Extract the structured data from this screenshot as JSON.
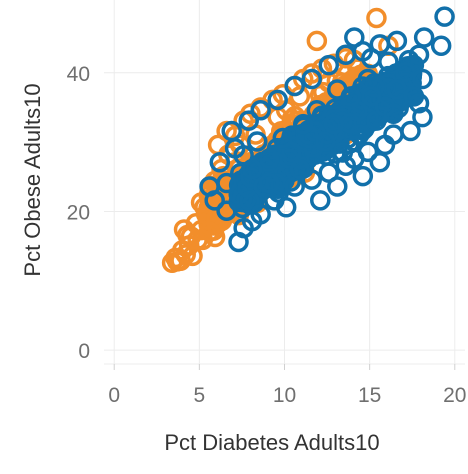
{
  "chart_data": {
    "type": "scatter",
    "title": "",
    "xlabel": "Pct Diabetes Adults10",
    "ylabel": "Pct Obese Adults10",
    "xlim": [
      -0.6,
      20.6
    ],
    "ylim": [
      -2,
      50.5
    ],
    "xticks": [
      0,
      5,
      10,
      15,
      20
    ],
    "yticks": [
      0,
      20,
      40
    ],
    "grid": true,
    "legend": "none",
    "marker": "hollow-circle",
    "series": [
      {
        "color": "#f28e2b",
        "draw_order": 1,
        "points": [
          [
            3.4,
            12.6
          ],
          [
            3.7,
            12.8
          ],
          [
            3.9,
            12.9
          ],
          [
            3.6,
            13.3
          ],
          [
            4.2,
            13.8
          ],
          [
            4.0,
            14.4
          ],
          [
            4.6,
            13.6
          ],
          [
            4.4,
            15.1
          ],
          [
            4.9,
            15.9
          ],
          [
            4.5,
            16.4
          ],
          [
            4.1,
            17.4
          ],
          [
            5.1,
            17.3
          ],
          [
            4.8,
            18.3
          ],
          [
            5.4,
            19.6
          ],
          [
            5.1,
            21.3
          ],
          [
            5.6,
            22.7
          ],
          [
            5.3,
            20.6
          ],
          [
            5.9,
            24.4
          ],
          [
            6.3,
            26.1
          ],
          [
            6.7,
            28.2
          ],
          [
            6.1,
            29.6
          ],
          [
            7.1,
            30.9
          ],
          [
            7.6,
            33.1
          ],
          [
            8.0,
            34.1
          ],
          [
            8.6,
            35.0
          ],
          [
            9.3,
            36.1
          ],
          [
            9.9,
            36.9
          ],
          [
            10.6,
            38.1
          ],
          [
            11.1,
            39.1
          ],
          [
            11.6,
            39.9
          ],
          [
            12.2,
            40.6
          ],
          [
            12.9,
            41.3
          ],
          [
            13.6,
            42.1
          ],
          [
            11.9,
            44.6
          ],
          [
            15.4,
            47.9
          ],
          [
            16.1,
            43.9
          ],
          [
            6.6,
            31.6
          ],
          [
            7.4,
            29.6
          ],
          [
            8.3,
            31.1
          ],
          [
            9.6,
            33.6
          ],
          [
            10.1,
            34.6
          ],
          [
            10.9,
            36.6
          ],
          [
            12.6,
            38.6
          ],
          [
            14.3,
            40.6
          ],
          [
            5.7,
            23.1
          ],
          [
            6.4,
            25.1
          ],
          [
            7.1,
            27.1
          ],
          [
            6.0,
            19.1
          ],
          [
            6.9,
            21.1
          ],
          [
            7.6,
            23.6
          ],
          [
            8.6,
            25.1
          ],
          [
            9.6,
            26.6
          ],
          [
            10.6,
            27.6
          ],
          [
            11.6,
            28.1
          ],
          [
            12.6,
            29.6
          ],
          [
            13.6,
            31.1
          ],
          [
            14.6,
            33.1
          ],
          [
            15.4,
            34.6
          ],
          [
            5.2,
            15.9
          ],
          [
            5.6,
            17.1
          ],
          [
            4.3,
            16.6
          ],
          [
            9.0,
            23.4
          ],
          [
            8.2,
            21.8
          ],
          [
            7.9,
            22.9
          ],
          [
            10.3,
            24.8
          ],
          [
            11.2,
            25.6
          ]
        ]
      },
      {
        "color": "#1170aa",
        "draw_order": 2,
        "points": [
          [
            19.4,
            48.1
          ],
          [
            19.2,
            43.9
          ],
          [
            17.6,
            41.1
          ],
          [
            18.2,
            45.1
          ],
          [
            17.9,
            42.6
          ],
          [
            17.1,
            38.6
          ],
          [
            16.9,
            36.1
          ],
          [
            18.1,
            33.6
          ],
          [
            17.4,
            31.6
          ],
          [
            16.4,
            31.1
          ],
          [
            15.9,
            29.6
          ],
          [
            15.4,
            33.1
          ],
          [
            14.9,
            28.6
          ],
          [
            14.1,
            27.6
          ],
          [
            13.6,
            26.6
          ],
          [
            12.6,
            25.6
          ],
          [
            11.6,
            24.6
          ],
          [
            10.6,
            23.6
          ],
          [
            10.1,
            20.6
          ],
          [
            9.4,
            21.6
          ],
          [
            8.6,
            19.6
          ],
          [
            8.1,
            18.6
          ],
          [
            7.6,
            17.6
          ],
          [
            7.3,
            15.6
          ],
          [
            6.6,
            20.1
          ],
          [
            5.9,
            21.6
          ],
          [
            5.6,
            23.6
          ],
          [
            6.2,
            27.1
          ],
          [
            7.1,
            29.1
          ],
          [
            6.9,
            31.6
          ],
          [
            7.9,
            33.1
          ],
          [
            8.6,
            34.6
          ],
          [
            9.6,
            36.1
          ],
          [
            10.6,
            38.1
          ],
          [
            11.6,
            39.1
          ],
          [
            12.6,
            41.1
          ],
          [
            13.6,
            42.6
          ],
          [
            14.6,
            43.1
          ],
          [
            15.6,
            44.1
          ],
          [
            16.6,
            44.6
          ],
          [
            14.1,
            45.1
          ],
          [
            15.1,
            42.1
          ],
          [
            16.1,
            41.6
          ],
          [
            17.1,
            40.1
          ],
          [
            16.6,
            37.6
          ],
          [
            17.6,
            36.6
          ],
          [
            18.1,
            39.1
          ],
          [
            15.9,
            35.1
          ],
          [
            12.1,
            21.6
          ],
          [
            13.1,
            23.6
          ],
          [
            14.6,
            25.1
          ],
          [
            15.6,
            27.1
          ],
          [
            9.1,
            24.1
          ],
          [
            8.1,
            26.1
          ],
          [
            7.6,
            28.1
          ],
          [
            6.6,
            24.1
          ],
          [
            16.4,
            34.1
          ],
          [
            17.9,
            35.6
          ],
          [
            14.4,
            31.1
          ],
          [
            13.9,
            36.6
          ],
          [
            11.1,
            32.6
          ],
          [
            12.4,
            30.1
          ],
          [
            10.4,
            28.6
          ],
          [
            9.9,
            30.6
          ],
          [
            11.9,
            34.6
          ],
          [
            13.1,
            37.6
          ],
          [
            14.9,
            39.1
          ],
          [
            12.9,
            32.6
          ],
          [
            15.1,
            36.6
          ],
          [
            9.1,
            27.6
          ],
          [
            8.4,
            30.1
          ],
          [
            10.9,
            26.1
          ]
        ]
      }
    ]
  }
}
